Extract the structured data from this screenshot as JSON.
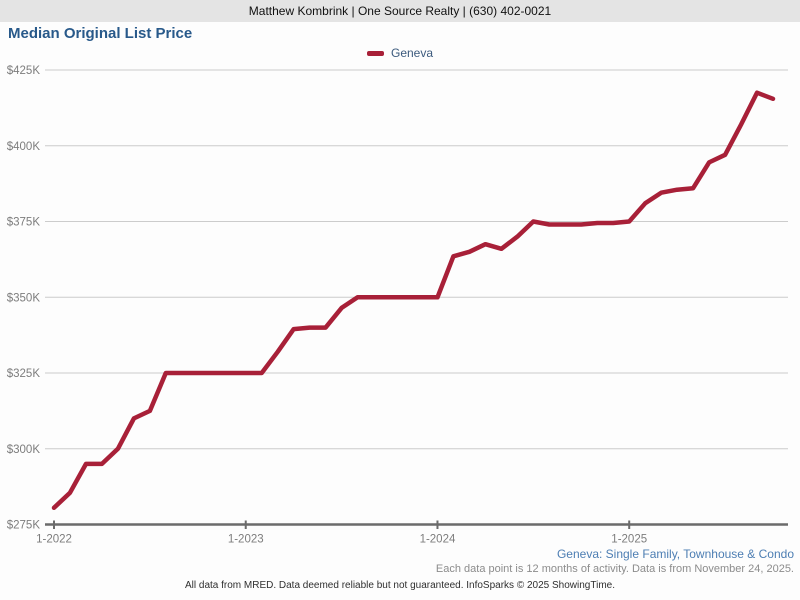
{
  "header": {
    "agent_info": "Matthew Kombrink | One Source Realty | (630) 402-0021"
  },
  "page_title": "Median Original List Price",
  "legend": {
    "series_label": "Geneva",
    "series_color": "#a82038"
  },
  "footnotes": {
    "series_note": "Geneva: Single Family, Townhouse & Condo",
    "data_note": "Each data point is 12 months of activity. Data is from November 24, 2025.",
    "disclaimer": "All data from MRED. Data deemed reliable but not guaranteed. InfoSparks © 2025 ShowingTime."
  },
  "chart_data": {
    "type": "line",
    "title": "Median Original List Price",
    "unit": "USD thousands",
    "grid": "horizontal",
    "legend_position": "top-center",
    "ylim": [
      275,
      430
    ],
    "y_axis_tick_labels": [
      "$275K",
      "$300K",
      "$325K",
      "$350K",
      "$375K",
      "$400K",
      "$425K"
    ],
    "x_axis_tick_labels": [
      "1-2022",
      "1-2023",
      "1-2024",
      "1-2025"
    ],
    "x_monthly": [
      "2022-01",
      "2022-02",
      "2022-03",
      "2022-04",
      "2022-05",
      "2022-06",
      "2022-07",
      "2022-08",
      "2022-09",
      "2022-10",
      "2022-11",
      "2022-12",
      "2023-01",
      "2023-02",
      "2023-03",
      "2023-04",
      "2023-05",
      "2023-06",
      "2023-07",
      "2023-08",
      "2023-09",
      "2023-10",
      "2023-11",
      "2023-12",
      "2024-01",
      "2024-02",
      "2024-03",
      "2024-04",
      "2024-05",
      "2024-06",
      "2024-07",
      "2024-08",
      "2024-09",
      "2024-10",
      "2024-11",
      "2024-12",
      "2025-01",
      "2025-02",
      "2025-03",
      "2025-04",
      "2025-05",
      "2025-06",
      "2025-07",
      "2025-08",
      "2025-09",
      "2025-10"
    ],
    "series": [
      {
        "name": "Geneva",
        "color": "#a82038",
        "values_thousands": [
          280.5,
          285.5,
          295,
          295,
          300,
          310,
          312.5,
          325,
          325,
          325,
          325,
          325,
          325,
          325,
          332,
          339.5,
          340,
          340,
          346.5,
          350,
          350,
          350,
          350,
          350,
          350,
          363.5,
          365,
          367.5,
          366,
          370,
          375,
          374,
          374,
          374,
          374.5,
          374.5,
          375,
          381,
          384.5,
          385.5,
          386,
          394.5,
          397,
          407,
          417.5,
          415.5
        ]
      }
    ],
    "axis_colors": {
      "grid": "#cccccc",
      "axis": "#6b6b6b",
      "tick_text": "#7d7d7d"
    }
  }
}
